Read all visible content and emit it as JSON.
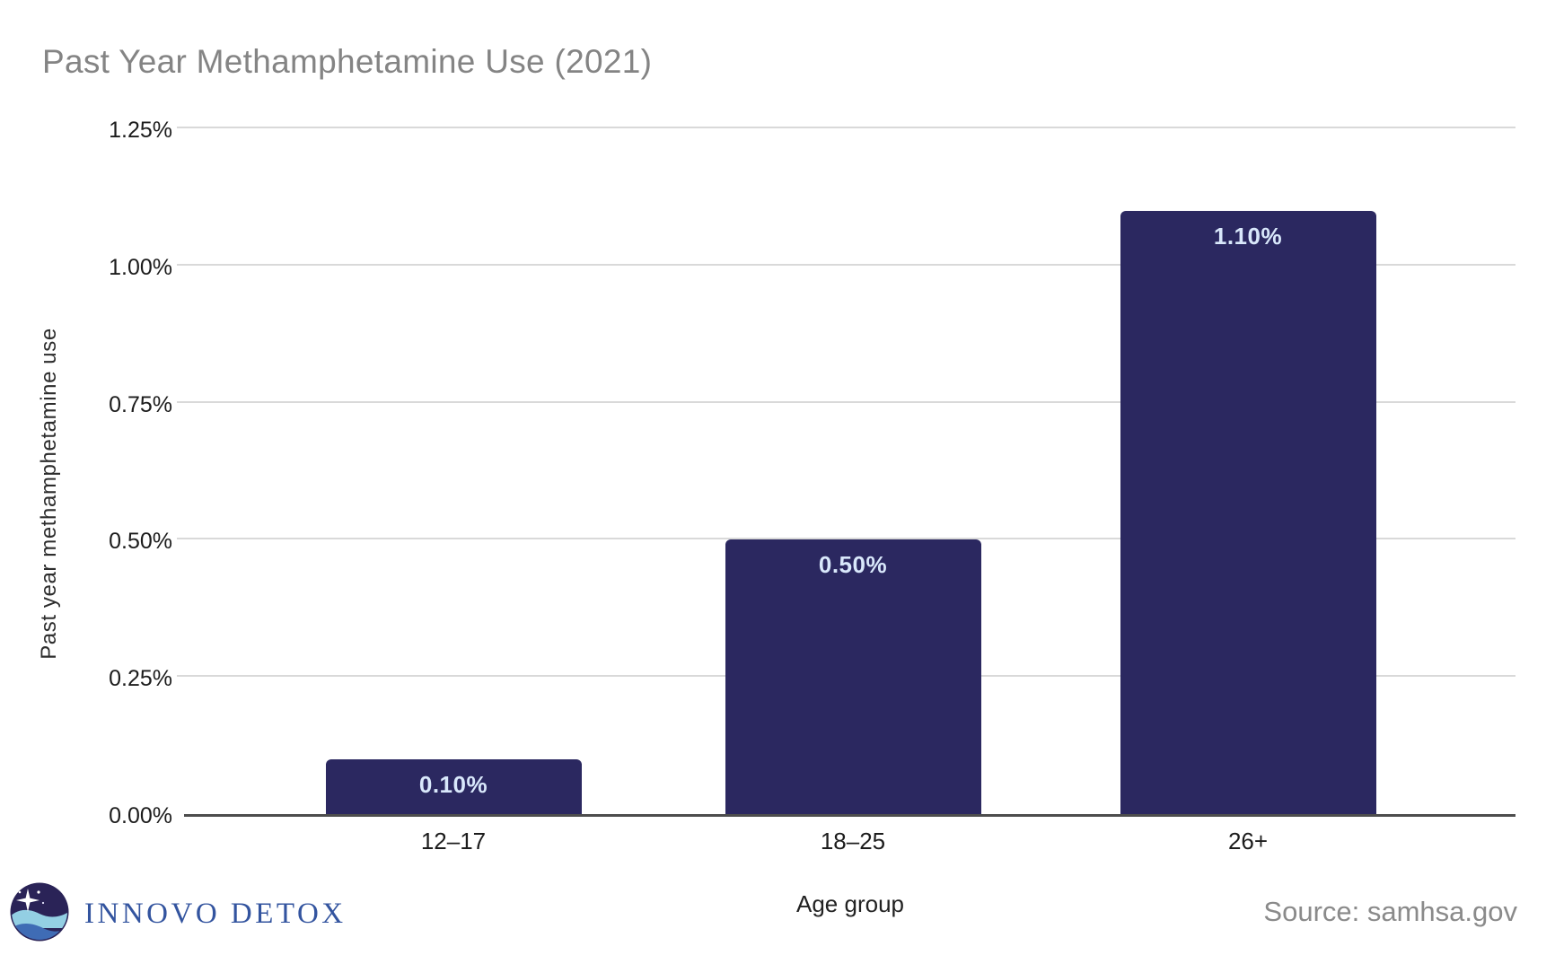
{
  "title": "Past Year Methamphetamine Use (2021)",
  "source": "Source: samhsa.gov",
  "logo": {
    "text": "INNOVO DETOX",
    "icon": "innovo-detox-globe-wave-star-icon",
    "text_color": "#33549f"
  },
  "chart_data": {
    "type": "bar",
    "title": "Past Year Methamphetamine Use (2021)",
    "categories": [
      "12–17",
      "18–25",
      "26+"
    ],
    "values": [
      0.1,
      0.5,
      1.1
    ],
    "value_labels": [
      "0.10%",
      "0.50%",
      "1.10%"
    ],
    "xlabel": "Age group",
    "ylabel": "Past year methamphetamine use",
    "ylim": [
      0,
      1.25
    ],
    "yticks": [
      0,
      0.25,
      0.5,
      0.75,
      1.0,
      1.25
    ],
    "ytick_labels": [
      "0.00%",
      "0.25%",
      "0.50%",
      "0.75%",
      "1.00%",
      "1.25%"
    ],
    "grid": true,
    "legend": false,
    "bar_color": "#2b2860",
    "value_label_color": "#d9e8fb",
    "gridline_color": "#d9d9d9",
    "axis_line_color": "#4d4d4d",
    "title_color": "#848484",
    "tick_label_color": "#1c1c1c"
  }
}
